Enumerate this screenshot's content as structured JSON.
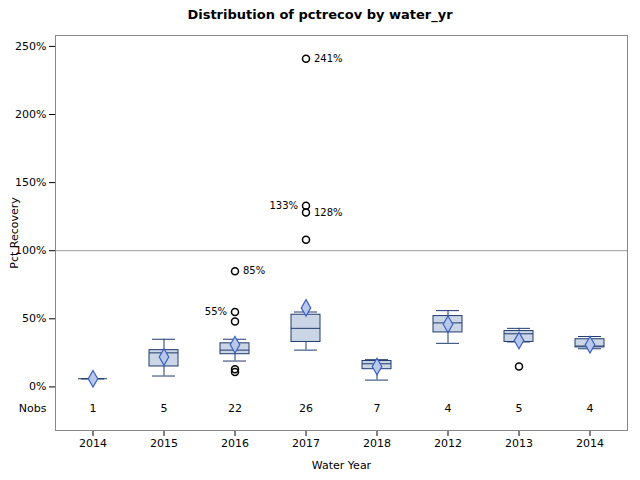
{
  "chart_data": {
    "type": "box",
    "title": "Distribution of pctrecov by water_yr",
    "x_label": "Water Year",
    "y_label": "Pct Recovery",
    "categories": [
      "2014",
      "2015",
      "2016",
      "2017",
      "2018",
      "2012",
      "2013",
      "2014"
    ],
    "whisker_low": [
      6,
      8,
      19,
      27,
      5,
      32,
      33,
      28
    ],
    "q1": [
      6,
      15,
      24,
      33,
      13,
      40,
      33,
      29
    ],
    "median": [
      6,
      25,
      27,
      43,
      17,
      47,
      39,
      30
    ],
    "q3": [
      6,
      27,
      32,
      53,
      19,
      52,
      41,
      35
    ],
    "whisker_high": [
      6,
      35,
      35,
      55,
      20,
      56,
      43,
      37
    ],
    "mean": [
      6,
      22,
      31,
      58,
      15,
      46,
      34,
      31
    ],
    "outliers": [
      [],
      [],
      [
        85,
        55,
        48,
        13,
        11
      ],
      [
        241,
        133,
        128,
        108
      ],
      [],
      [],
      [
        15
      ],
      []
    ],
    "outlier_labels": [
      [],
      [],
      [
        "85%",
        "55%",
        null,
        null,
        null
      ],
      [
        "241%",
        "133%",
        "128%",
        null
      ],
      [],
      [],
      [
        null
      ],
      []
    ],
    "nobs_label": "Nobs",
    "nobs": [
      1,
      5,
      22,
      26,
      7,
      4,
      5,
      4
    ],
    "reference_line": 100,
    "ylim": [
      -32,
      258
    ],
    "yticks": [
      {
        "value": 0,
        "label": "0%"
      },
      {
        "value": 50,
        "label": "50%"
      },
      {
        "value": 100,
        "label": "100%"
      },
      {
        "value": 150,
        "label": "150%"
      },
      {
        "value": 200,
        "label": "200%"
      },
      {
        "value": 250,
        "label": "250%"
      }
    ],
    "grid": false
  }
}
